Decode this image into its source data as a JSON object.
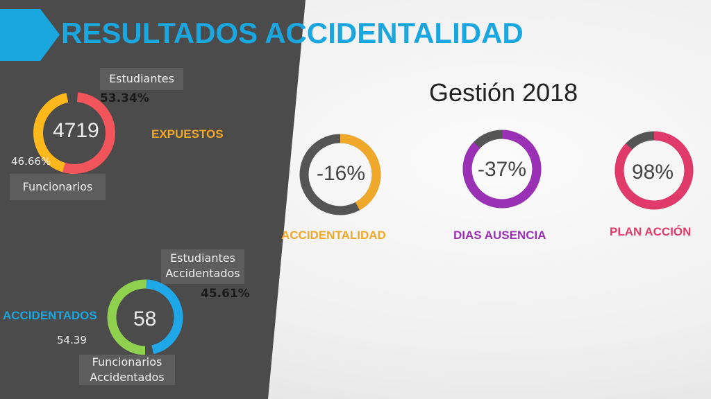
{
  "header": {
    "title": "RESULTADOS ACCIDENTALIDAD",
    "subtitle": "Gestión 2018"
  },
  "expuestos": {
    "total": "4719",
    "label": "EXPUESTOS",
    "estudiantes_label": "Estudiantes",
    "estudiantes_pct": "53.34%",
    "funcionarios_label": "Funcionarios",
    "funcionarios_pct": "46.66%"
  },
  "accidentados": {
    "total": "58",
    "label": "ACCIDENTADOS",
    "estudiantes_label_1": "Estudiantes",
    "estudiantes_label_2": "Accidentados",
    "estudiantes_pct": "45.61%",
    "funcionarios_label_1": "Funcionarios",
    "funcionarios_label_2": "Accidentados",
    "funcionarios_pct": "54.39"
  },
  "kpis": [
    {
      "value": "-16%",
      "label": "ACCIDENTALIDAD",
      "fraction": 0.42,
      "color": "#f0a82a"
    },
    {
      "value": "-37%",
      "label": "DIAS AUSENCIA",
      "fraction": 0.87,
      "color": "#9a31b5"
    },
    {
      "value": "98%",
      "label": "PLAN ACCIÓN",
      "fraction": 0.87,
      "color": "#e03a6a"
    }
  ],
  "colors": {
    "accent": "#1aa6df",
    "dark_panel": "#4b4b4b",
    "track": "#555555",
    "expuestos_a": "#ffb81c",
    "expuestos_b": "#f2545b",
    "accid_a": "#8fd14f",
    "accid_b": "#1fa8e8"
  }
}
